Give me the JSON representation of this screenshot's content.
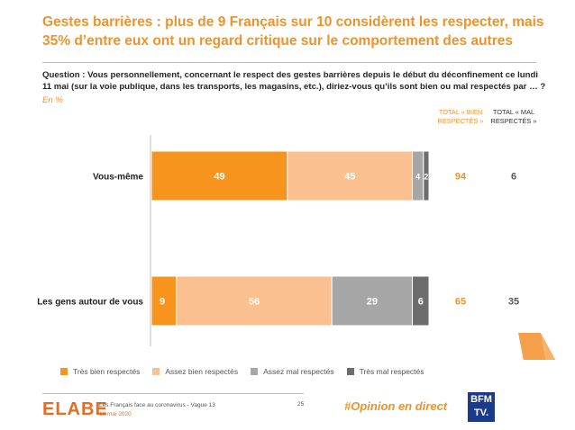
{
  "title": "Gestes barrières : plus de 9 Français sur 10 considèrent les respecter, mais 35% d’entre eux ont un regard critique sur le comportement des autres",
  "question": "Question : Vous personnellement, concernant le respect des gestes barrières depuis le début du déconfinement ce lundi 11 mai (sur la voie publique, dans les transports, les magasins, etc.), diriez-vous qu’ils sont bien ou mal respectés par … ?",
  "unit_note": "En %",
  "totals_headers": {
    "good": "TOTAL « BIEN RESPECTÉS »",
    "bad": "TOTAL « MAL RESPECTÉS »"
  },
  "colors": {
    "tres_bien": "#f7941d",
    "assez_bien": "#fbc08f",
    "assez_mal": "#a6a6a6",
    "tres_mal": "#6d6d6d",
    "accent": "#f0922b"
  },
  "chart_data": {
    "type": "bar",
    "orientation": "horizontal-stacked-100",
    "categories": [
      "Vous-même",
      "Les gens autour de vous"
    ],
    "series": [
      {
        "name": "Très bien respectés",
        "values": [
          49,
          9
        ]
      },
      {
        "name": "Assez bien respectés",
        "values": [
          45,
          56
        ]
      },
      {
        "name": "Assez mal respectés",
        "values": [
          4,
          29
        ]
      },
      {
        "name": "Très mal respectés",
        "values": [
          2,
          6
        ]
      }
    ],
    "totals_bien": [
      94,
      65
    ],
    "totals_mal": [
      6,
      35
    ],
    "legend_position": "bottom"
  },
  "footer": {
    "logo": "ELABE",
    "study": "Les Français face au coronavirus - Vague 13",
    "date": "13 mai 2020",
    "page": "25",
    "hashtag": "#Opinion en direct",
    "partner_line1": "BFM",
    "partner_line2": "TV."
  }
}
